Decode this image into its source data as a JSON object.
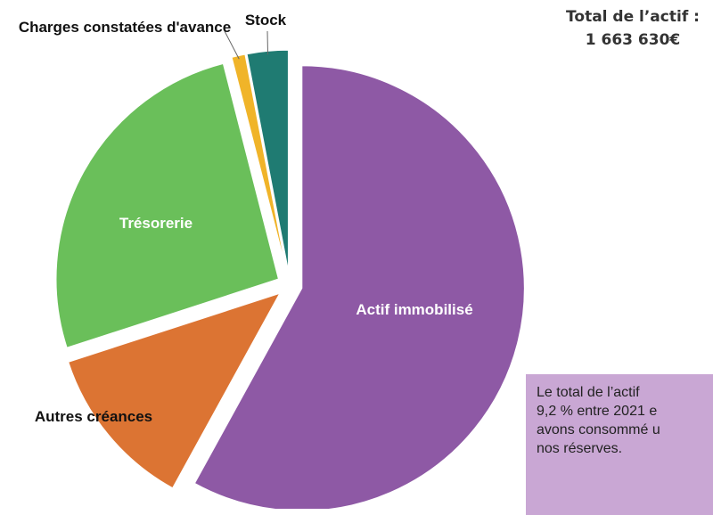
{
  "chart_data": {
    "type": "pie",
    "title": "Total de l’actif :",
    "subtitle": "1 663 630€",
    "categories": [
      "Actif immobilisé",
      "Autres créances",
      "Trésorerie",
      "Charges constatées d'avance",
      "Stock"
    ],
    "values": [
      58,
      12,
      26,
      1,
      3
    ],
    "colors": [
      "#8e59a5",
      "#dc7433",
      "#6abf5a",
      "#f0b429",
      "#1f7b72"
    ],
    "annotation": [
      "Le total de l’actif",
      "9,2 % entre 2021 e",
      "avons consommé u",
      "nos réserves."
    ]
  }
}
